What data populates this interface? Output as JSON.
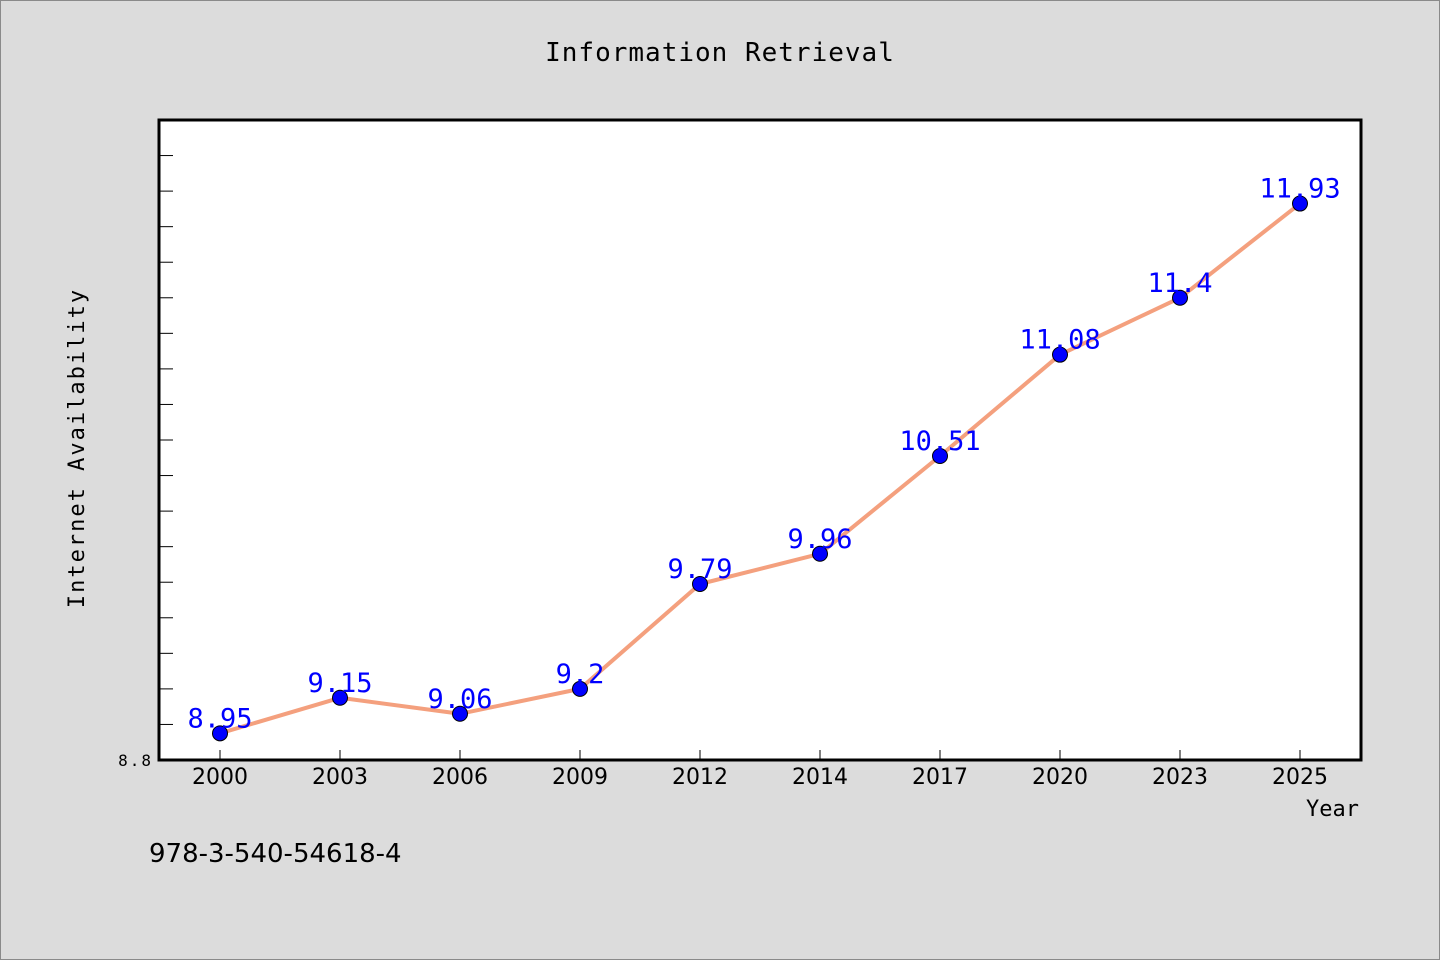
{
  "chart_data": {
    "type": "line",
    "title": "Information Retrieval",
    "xlabel": "Year",
    "ylabel": "Internet Availability",
    "categories": [
      "2000",
      "2003",
      "2006",
      "2009",
      "2012",
      "2014",
      "2017",
      "2020",
      "2023",
      "2025"
    ],
    "series": [
      {
        "values": [
          8.95,
          9.15,
          9.06,
          9.2,
          9.79,
          9.96,
          10.51,
          11.08,
          11.4,
          11.93
        ],
        "labels": [
          "8.95",
          "9.15",
          "9.06",
          "9.2",
          "9.79",
          "9.96",
          "10.51",
          "11.08",
          "11.4",
          "11.93"
        ]
      }
    ],
    "ylim": [
      8.8,
      12.4
    ],
    "ytick_labels": [
      "8.8"
    ],
    "grid": false,
    "line_color": "#f4a07e",
    "marker_color": "#0000ff",
    "label_color": "#0000ff"
  },
  "footer": {
    "isbn": "978-3-540-54618-4"
  }
}
